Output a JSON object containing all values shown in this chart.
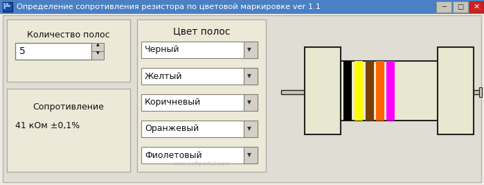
{
  "title_bar_text": "Определение сопротивления резистора по цветовой маркировке ver 1.1",
  "title_bar_color": "#4a80c4",
  "bg_color": "#d4d0c8",
  "inner_bg": "#ecebe4",
  "panel_bg": "#ece9d8",
  "panel_border": "#aca899",
  "label1": "Количество полос",
  "label2": "5",
  "label3": "Сопротивление",
  "label4": "41 кОм ±0,1%",
  "color_title": "Цвет полос",
  "dropdowns": [
    "Черный",
    "Желтый",
    "Коричневый",
    "Оранжевый",
    "Фиолетовый"
  ],
  "resistor_body_color": "#e8e8d0",
  "band_colors": [
    "#000000",
    "#ffff00",
    "#7b3f00",
    "#ff6600",
    "#ff00ff"
  ],
  "watermark": "www.softportal.com",
  "close_btn_color": "#cc2222",
  "dd_bg": "#ffffff",
  "dd_arrow_bg": "#d4d0c8"
}
